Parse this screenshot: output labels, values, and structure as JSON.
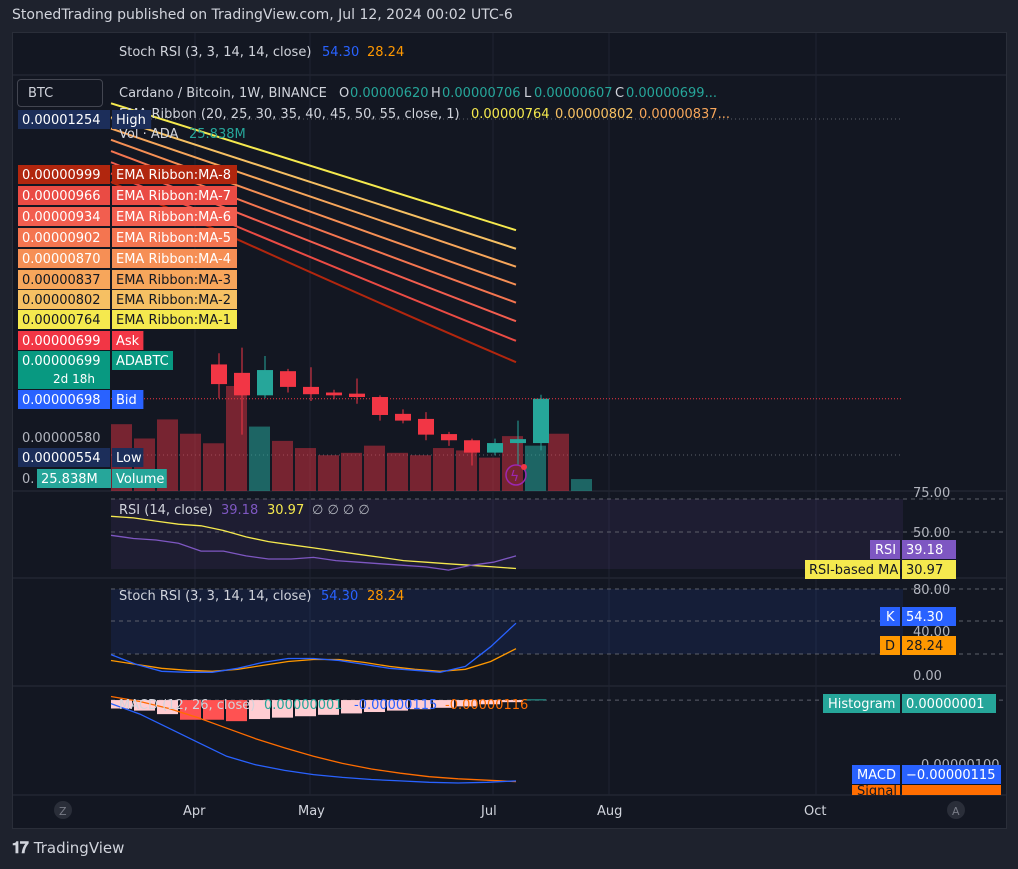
{
  "header": {
    "published": "StonedTrading published on TradingView.com, Jul 12, 2024 00:02 UTC-6"
  },
  "footer": {
    "brand": "TradingView"
  },
  "symbol_box": "BTC",
  "top_stoch_legend": {
    "label": "Stoch RSI (3, 3, 14, 14, close)",
    "k": "54.30",
    "d": "28.24"
  },
  "main_legend": {
    "title": "Cardano / Bitcoin, 1W, BINANCE",
    "o_label": "O",
    "o": "0.00000620",
    "h_label": "H",
    "h": "0.00000706",
    "l_label": "L",
    "l": "0.00000607",
    "c_label": "C",
    "c": "0.00000699...",
    "ema_label": "EMA Ribbon (20, 25, 30, 35, 40, 45, 50, 55, close, 1)",
    "ema1": "0.00000764",
    "ema2": "0.00000802",
    "ema3": "0.00000837...",
    "vol_label": "Vol · ADA",
    "vol": "25.838M"
  },
  "colors": {
    "up": "#26a69a",
    "down": "#f23645",
    "ema": [
      "#f5e94e",
      "#f6c063",
      "#f7a65b",
      "#f68f55",
      "#f47550",
      "#f25e4f",
      "#ea4b44",
      "#b1260e"
    ],
    "rsi": "#7e57c2",
    "rsi_ma": "#f5e94e",
    "k": "#2962ff",
    "d": "#ff9800",
    "macd": "#2962ff",
    "signal": "#ff6d00"
  },
  "left_labels": [
    {
      "value": "0.00001254",
      "name": "High",
      "bg": "#1c2e5a",
      "fg": "#ffffff"
    },
    {
      "value": "0.00000999",
      "name": "EMA Ribbon:MA-8",
      "bg": "#b1260e",
      "fg": "#ffffff"
    },
    {
      "value": "0.00000966",
      "name": "EMA Ribbon:MA-7",
      "bg": "#ea4b44",
      "fg": "#ffffff"
    },
    {
      "value": "0.00000934",
      "name": "EMA Ribbon:MA-6",
      "bg": "#f25e4f",
      "fg": "#ffffff"
    },
    {
      "value": "0.00000902",
      "name": "EMA Ribbon:MA-5",
      "bg": "#f47550",
      "fg": "#ffffff"
    },
    {
      "value": "0.00000870",
      "name": "EMA Ribbon:MA-4",
      "bg": "#f68f55",
      "fg": "#ffffff"
    },
    {
      "value": "0.00000837",
      "name": "EMA Ribbon:MA-3",
      "bg": "#f7a65b",
      "fg": "#131722"
    },
    {
      "value": "0.00000802",
      "name": "EMA Ribbon:MA-2",
      "bg": "#f6c063",
      "fg": "#131722"
    },
    {
      "value": "0.00000764",
      "name": "EMA Ribbon:MA-1",
      "bg": "#f5e94e",
      "fg": "#131722"
    },
    {
      "value": "0.00000699",
      "name": "Ask",
      "bg": "#f23645",
      "fg": "#ffffff"
    },
    {
      "value": "0.00000699",
      "name": "ADABTC",
      "bg": "#089981",
      "fg": "#ffffff",
      "sub": "2d 18h"
    },
    {
      "value": "0.00000698",
      "name": "Bid",
      "bg": "#2962ff",
      "fg": "#ffffff"
    },
    {
      "value": "0.00000580",
      "name": "",
      "bg": "",
      "fg": "#b2b5be"
    },
    {
      "value": "0.00000554",
      "name": "Low",
      "bg": "#1c2e5a",
      "fg": "#ffffff"
    },
    {
      "value": "25.838M",
      "name": "Volume",
      "bg": "#26a69a",
      "fg": "#ffffff",
      "prefix": "0."
    }
  ],
  "rsi_panel": {
    "label": "RSI (14, close)",
    "rsi": "39.18",
    "ma": "30.97",
    "extras": "∅ ∅ ∅ ∅",
    "ticks": [
      "75.00",
      "50.00"
    ],
    "badges": [
      {
        "name": "RSI",
        "value": "39.18"
      },
      {
        "name": "RSI-based MA",
        "value": "30.97"
      }
    ]
  },
  "stoch_panel": {
    "label": "Stoch RSI (3, 3, 14, 14, close)",
    "k": "54.30",
    "d": "28.24",
    "ticks": [
      "80.00",
      "40.00",
      "0.00"
    ],
    "badges": [
      {
        "name": "K",
        "value": "54.30"
      },
      {
        "name": "D",
        "value": "28.24"
      }
    ]
  },
  "macd_panel": {
    "label": "MACD (12, 26, close)",
    "hist": "0.00000001",
    "macd": "-0.00000115",
    "signal": "-0.00000116",
    "tick": "0.00000100",
    "badges": [
      {
        "name": "Histogram",
        "value": "0.00000001"
      },
      {
        "name": "MACD",
        "value": "−0.00000115"
      },
      {
        "name": "Signal",
        "value": "−0.00000116"
      }
    ]
  },
  "x_axis": {
    "labels": [
      "Apr",
      "May",
      "Jul",
      "Aug",
      "Oct"
    ],
    "left_icon": "Z",
    "right_icon": "A"
  },
  "chart_data": [
    {
      "type": "candlestick",
      "title": "Cardano / Bitcoin, 1W, BINANCE",
      "ylim": [
        5.4e-06,
        1.27e-05
      ],
      "candles": [
        {
          "o": 7.6e-06,
          "h": 7.8e-06,
          "l": 7e-06,
          "c": 7.25e-06
        },
        {
          "o": 7.45e-06,
          "h": 7.9e-06,
          "l": 6.35e-06,
          "c": 7.05e-06
        },
        {
          "o": 7.05e-06,
          "h": 7.75e-06,
          "l": 7e-06,
          "c": 7.5e-06
        },
        {
          "o": 7.48e-06,
          "h": 7.52e-06,
          "l": 7.1e-06,
          "c": 7.2e-06
        },
        {
          "o": 7.2e-06,
          "h": 7.55e-06,
          "l": 6.95e-06,
          "c": 7.07e-06
        },
        {
          "o": 7.1e-06,
          "h": 7.15e-06,
          "l": 6.98e-06,
          "c": 7.05e-06
        },
        {
          "o": 7.08e-06,
          "h": 7.35e-06,
          "l": 6.9e-06,
          "c": 7.02e-06
        },
        {
          "o": 7.02e-06,
          "h": 7.05e-06,
          "l": 6.6e-06,
          "c": 6.7e-06
        },
        {
          "o": 6.72e-06,
          "h": 6.8e-06,
          "l": 6.55e-06,
          "c": 6.6e-06
        },
        {
          "o": 6.63e-06,
          "h": 6.75e-06,
          "l": 6.25e-06,
          "c": 6.35e-06
        },
        {
          "o": 6.36e-06,
          "h": 6.4e-06,
          "l": 6.15e-06,
          "c": 6.25e-06
        },
        {
          "o": 6.25e-06,
          "h": 6.28e-06,
          "l": 5.8e-06,
          "c": 6.03e-06
        },
        {
          "o": 6.03e-06,
          "h": 6.28e-06,
          "l": 5.98e-06,
          "c": 6.2e-06
        },
        {
          "o": 6.2e-06,
          "h": 6.6e-06,
          "l": 5.8e-06,
          "c": 6.27e-06
        },
        {
          "o": 6.2e-06,
          "h": 7.06e-06,
          "l": 6.07e-06,
          "c": 6.99e-06
        }
      ],
      "volume": [
        {
          "v": 28,
          "up": false
        },
        {
          "v": 22,
          "up": false
        },
        {
          "v": 30,
          "up": false
        },
        {
          "v": 24,
          "up": false
        },
        {
          "v": 20,
          "up": false
        },
        {
          "v": 44,
          "up": false
        },
        {
          "v": 27,
          "up": true
        },
        {
          "v": 21,
          "up": false
        },
        {
          "v": 18,
          "up": false
        },
        {
          "v": 15,
          "up": false
        },
        {
          "v": 16,
          "up": false
        },
        {
          "v": 19,
          "up": false
        },
        {
          "v": 16,
          "up": false
        },
        {
          "v": 15,
          "up": false
        },
        {
          "v": 18,
          "up": false
        },
        {
          "v": 17,
          "up": false
        },
        {
          "v": 14,
          "up": false
        },
        {
          "v": 23,
          "up": false
        },
        {
          "v": 19,
          "up": true
        },
        {
          "v": 24,
          "up": false
        },
        {
          "v": 5,
          "up": true
        }
      ],
      "ema_ribbon": [
        {
          "name": "MA-8",
          "start": 1.225e-05,
          "end": 9.99e-06
        },
        {
          "name": "MA-7",
          "start": 1.2e-05,
          "end": 9.66e-06
        },
        {
          "name": "MA-6",
          "start": 1.18e-05,
          "end": 9.34e-06
        },
        {
          "name": "MA-5",
          "start": 1.16e-05,
          "end": 9.02e-06
        },
        {
          "name": "MA-4",
          "start": 1.14e-05,
          "end": 8.7e-06
        },
        {
          "name": "MA-3",
          "start": 1.12e-05,
          "end": 8.37e-06
        },
        {
          "name": "MA-2",
          "start": 1.1e-05,
          "end": 8.02e-06
        },
        {
          "name": "MA-1",
          "start": 1.085e-05,
          "end": 7.64e-06
        }
      ],
      "last_price": 6.99e-06
    },
    {
      "type": "line",
      "title": "RSI (14, close)",
      "ylim": [
        25,
        80
      ],
      "series": [
        {
          "name": "RSI",
          "values": [
            52,
            50,
            49,
            47,
            42,
            42,
            39,
            37,
            37,
            38,
            36,
            35,
            34,
            33,
            32,
            30,
            33,
            35,
            39
          ]
        },
        {
          "name": "RSI-based MA",
          "values": [
            64,
            63,
            61,
            59,
            58,
            55,
            51,
            48,
            46,
            44,
            42,
            40,
            38,
            36,
            35,
            34,
            33,
            32,
            31
          ]
        }
      ]
    },
    {
      "type": "line",
      "title": "Stoch RSI (3, 3, 14, 14, close)",
      "ylim": [
        -10,
        100
      ],
      "series": [
        {
          "name": "K",
          "values": [
            22,
            12,
            5,
            4,
            4,
            8,
            14,
            18,
            18,
            16,
            12,
            8,
            6,
            4,
            10,
            30,
            54
          ]
        },
        {
          "name": "D",
          "values": [
            16,
            12,
            8,
            6,
            5,
            7,
            11,
            15,
            17,
            17,
            14,
            10,
            7,
            5,
            7,
            15,
            28
          ]
        }
      ]
    },
    {
      "type": "line",
      "title": "MACD (12, 26, close)",
      "ylim": [
        -1.35e-06,
        2e-07
      ],
      "series": [
        {
          "name": "MACD",
          "values": [
            -5e-08,
            -2e-07,
            -4e-07,
            -6e-07,
            -8e-07,
            -9.2e-07,
            -1e-06,
            -1.06e-06,
            -1.1e-06,
            -1.13e-06,
            -1.15e-06,
            -1.17e-06,
            -1.18e-06,
            -1.17e-06,
            -1.15e-06
          ]
        },
        {
          "name": "Signal",
          "values": [
            5e-08,
            -2e-08,
            -1.2e-07,
            -2.5e-07,
            -4e-07,
            -5.5e-07,
            -6.8e-07,
            -8e-07,
            -9e-07,
            -9.8e-07,
            -1.04e-06,
            -1.09e-06,
            -1.12e-06,
            -1.14e-06,
            -1.16e-06
          ]
        }
      ],
      "histogram": [
        -1.2e-07,
        -1.5e-07,
        -2e-07,
        -2.8e-07,
        -2.8e-07,
        -3e-07,
        -2.7e-07,
        -2.5e-07,
        -2.3e-07,
        -2.1e-07,
        -1.9e-07,
        -1.7e-07,
        -1.5e-07,
        -1.3e-07,
        -1.1e-07,
        -9e-08,
        -6e-08,
        -3e-08,
        1e-08
      ]
    }
  ]
}
